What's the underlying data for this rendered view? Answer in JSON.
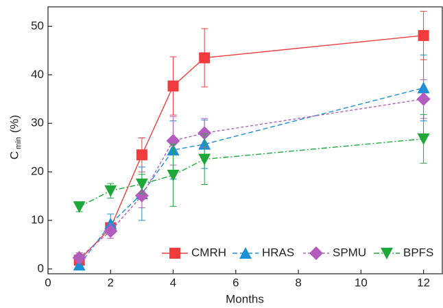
{
  "chart_data": {
    "type": "line",
    "xlabel": "Months",
    "ylabel": "C",
    "ylabel_sub": "min",
    "ylabel_unit": "(%)",
    "x": [
      1,
      2,
      3,
      4,
      5,
      12
    ],
    "xlim": [
      0,
      12.6
    ],
    "xticks": [
      0,
      2,
      4,
      6,
      8,
      10,
      12
    ],
    "ylim": [
      -1,
      54
    ],
    "yticks": [
      0,
      10,
      20,
      30,
      40,
      50
    ],
    "series": [
      {
        "name": "CMRH",
        "color": "#f03c3c",
        "marker": "square",
        "dash": "solid",
        "values": [
          1.8,
          8.5,
          23.5,
          37.7,
          43.5,
          48.1
        ],
        "errors": [
          1.5,
          1,
          3.5,
          6,
          6,
          5
        ]
      },
      {
        "name": "HRAS",
        "color": "#1a8fd6",
        "marker": "triangle-up",
        "dash": "dashed",
        "values": [
          0.8,
          9.3,
          15.5,
          24.5,
          25.7,
          37.3
        ],
        "errors": [
          1,
          2,
          5.5,
          6,
          5,
          6.8
        ]
      },
      {
        "name": "SPMU",
        "color": "#b45cbe",
        "marker": "diamond",
        "dash": "dotted",
        "values": [
          2.3,
          7.8,
          15.1,
          26.4,
          28,
          35
        ],
        "errors": [
          1,
          1.5,
          2.5,
          5,
          3,
          4
        ]
      },
      {
        "name": "BPFS",
        "color": "#1fa83a",
        "marker": "triangle-down",
        "dash": "dashdot",
        "values": [
          12.8,
          16.1,
          17.5,
          19.3,
          22.6,
          26.8
        ],
        "errors": [
          1,
          1.5,
          2,
          6.4,
          5.2,
          5
        ]
      }
    ]
  }
}
